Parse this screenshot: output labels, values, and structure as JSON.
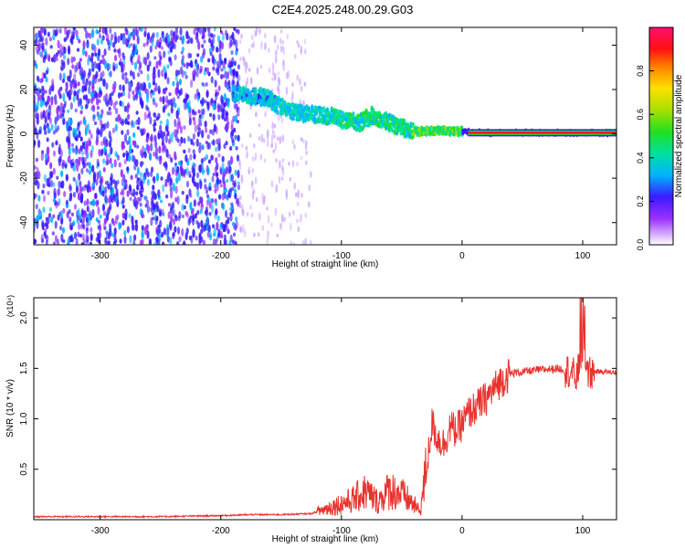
{
  "figure": {
    "title": "C2E4.2025.248.00.29.G03"
  },
  "chart_data": [
    {
      "type": "heatmap",
      "title": "C2E4.2025.248.00.29.G03",
      "xlabel": "Height of straight line (km)",
      "ylabel": "Frequency (Hz)",
      "xlim": [
        -355,
        128
      ],
      "ylim": [
        -50,
        48
      ],
      "x_ticks": [
        -300,
        -200,
        -100,
        0,
        100
      ],
      "y_ticks": [
        -40,
        -20,
        0,
        20,
        40
      ],
      "colorbar": {
        "label": "Normalized spectral amplitude",
        "range": [
          0,
          1
        ],
        "ticks": [
          0.0,
          0.2,
          0.4,
          0.6,
          0.8
        ]
      },
      "ridge": {
        "x": [
          -190,
          -175,
          -160,
          -150,
          -140,
          -125,
          -110,
          -95,
          -85,
          -75,
          -65,
          -55,
          -45,
          -35,
          -20,
          0,
          20,
          60,
          100,
          128
        ],
        "frequency": [
          18,
          17,
          16,
          12,
          10,
          9,
          8,
          6,
          5,
          8,
          6,
          4,
          2,
          1,
          1.5,
          1,
          0.5,
          0.5,
          0.5,
          0.5
        ]
      }
    },
    {
      "type": "line",
      "xlabel": "Height of straight line (km)",
      "ylabel": "SNR (10 * v/v)",
      "y_multiplier": "(x10⁴)",
      "xlim": [
        -355,
        128
      ],
      "ylim": [
        0,
        2.2
      ],
      "x_ticks": [
        -300,
        -200,
        -100,
        0,
        100
      ],
      "y_ticks": [
        0.5,
        1.0,
        1.5,
        2.0
      ],
      "series": [
        {
          "color": "#e8322e",
          "x": [
            -355,
            -300,
            -250,
            -200,
            -175,
            -150,
            -125,
            -110,
            -100,
            -90,
            -80,
            -70,
            -60,
            -50,
            -40,
            -35,
            -30,
            -25,
            -20,
            -15,
            -10,
            -5,
            0,
            5,
            10,
            20,
            30,
            40,
            60,
            80,
            90,
            95,
            100,
            105,
            110,
            128
          ],
          "y": [
            0.03,
            0.03,
            0.03,
            0.04,
            0.05,
            0.05,
            0.06,
            0.12,
            0.16,
            0.2,
            0.28,
            0.18,
            0.3,
            0.25,
            0.15,
            0.08,
            0.45,
            0.95,
            0.8,
            0.75,
            0.92,
            0.88,
            0.95,
            1.05,
            1.1,
            1.2,
            1.35,
            1.45,
            1.48,
            1.5,
            1.47,
            1.4,
            1.72,
            1.45,
            1.47,
            1.46
          ]
        }
      ]
    }
  ]
}
